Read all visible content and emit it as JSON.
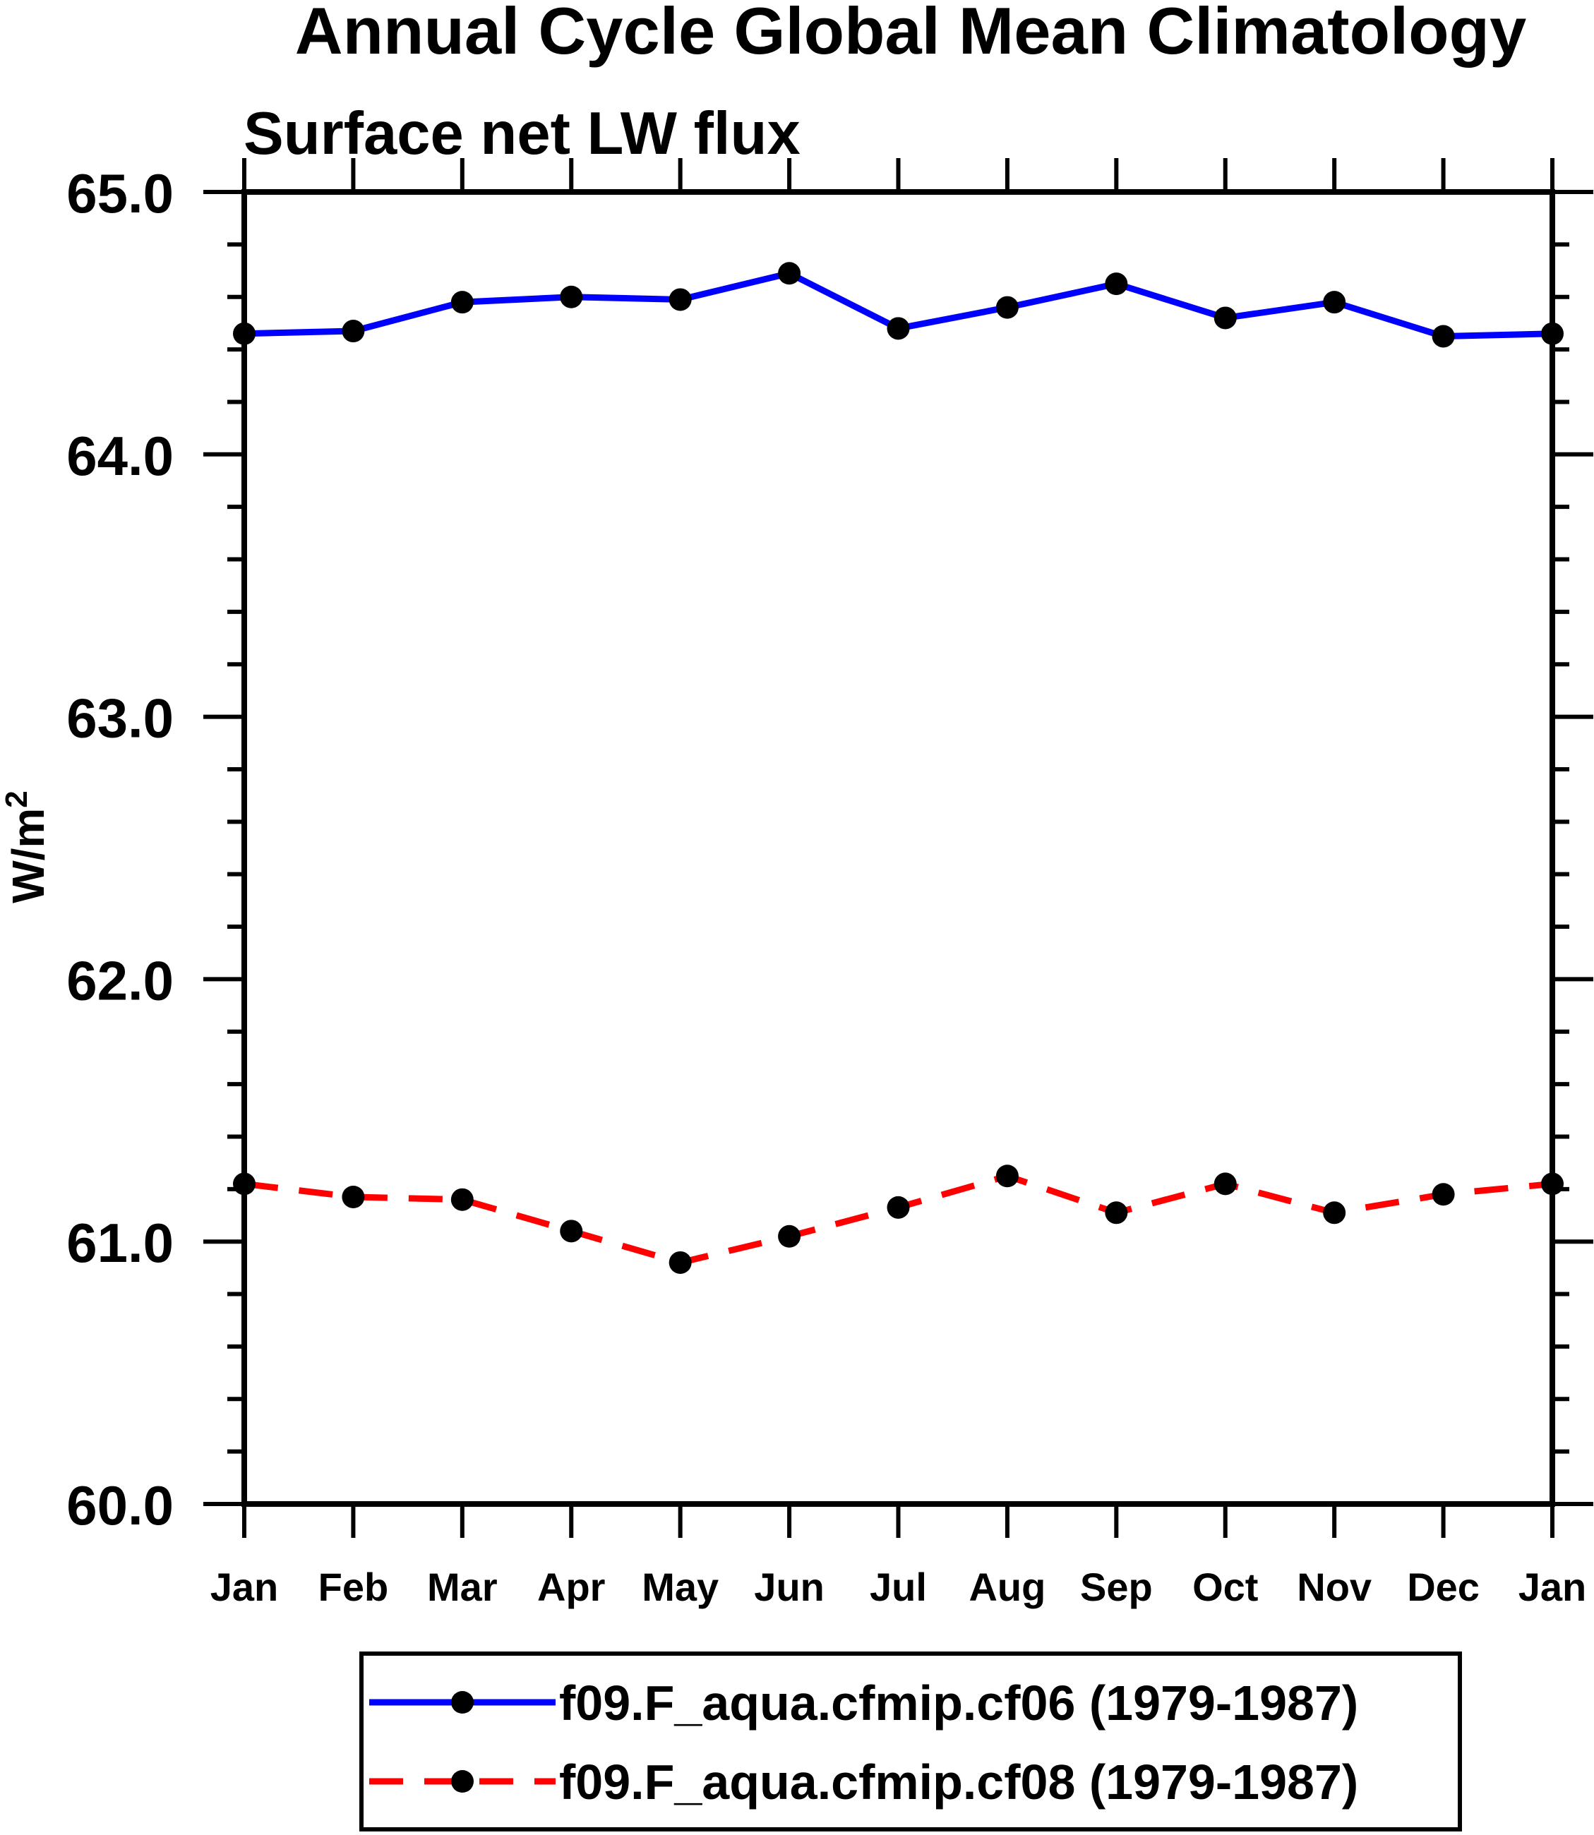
{
  "chart_data": {
    "type": "line",
    "title": "Annual Cycle Global Mean Climatology",
    "subtitle": "Surface net LW flux",
    "ylabel_base": "W/m",
    "ylabel_exp": "2",
    "xlabel": "",
    "categories": [
      "Jan",
      "Feb",
      "Mar",
      "Apr",
      "May",
      "Jun",
      "Jul",
      "Aug",
      "Sep",
      "Oct",
      "Nov",
      "Dec",
      "Jan"
    ],
    "ylim": [
      60.0,
      65.0
    ],
    "ytick_major_step": 1.0,
    "ytick_minor_step": 0.2,
    "ytick_labels": [
      "60.0",
      "61.0",
      "62.0",
      "63.0",
      "64.0",
      "65.0"
    ],
    "grid": false,
    "legend_position": "bottom-center",
    "axis_color": "#000000",
    "marker_color": "#000000",
    "background_color": "#ffffff",
    "series": [
      {
        "name": "f09.F_aqua.cfmip.cf06 (1979-1987)",
        "color": "#0000ff",
        "line_style": "solid",
        "marker": "circle",
        "values": [
          64.46,
          64.47,
          64.58,
          64.6,
          64.59,
          64.69,
          64.48,
          64.56,
          64.65,
          64.52,
          64.58,
          64.45,
          64.46
        ]
      },
      {
        "name": "f09.F_aqua.cfmip.cf08 (1979-1987)",
        "color": "#ff0000",
        "line_style": "dashed",
        "marker": "circle",
        "values": [
          61.22,
          61.17,
          61.16,
          61.04,
          60.92,
          61.02,
          61.13,
          61.25,
          61.11,
          61.22,
          61.11,
          61.18,
          61.22
        ]
      }
    ]
  }
}
